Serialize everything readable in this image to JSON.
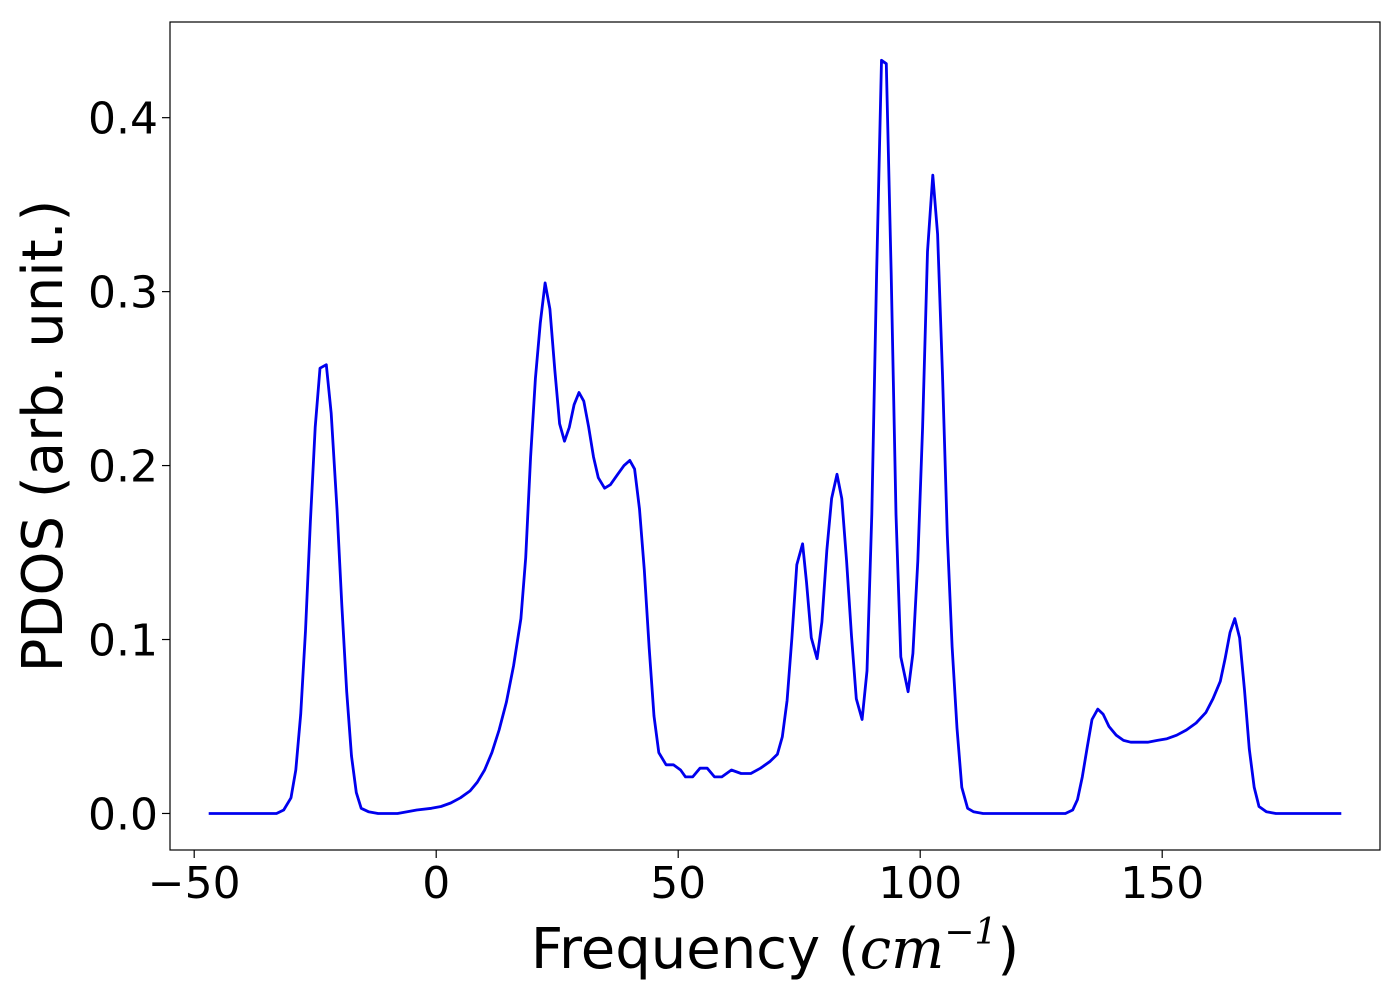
{
  "chart_data": {
    "type": "line",
    "title": "",
    "xlabel_prefix": "Frequency (",
    "xlabel_math": "cm",
    "xlabel_exponent": "−1",
    "xlabel_suffix": ")",
    "ylabel": "PDOS (arb. unit.)",
    "xlim": [
      -55,
      195
    ],
    "ylim": [
      -0.021,
      0.455
    ],
    "grid": false,
    "legend": "none",
    "x_ticks": [
      {
        "value": -50,
        "label": "−50"
      },
      {
        "value": 0,
        "label": "0"
      },
      {
        "value": 50,
        "label": "50"
      },
      {
        "value": 100,
        "label": "100"
      },
      {
        "value": 150,
        "label": "150"
      }
    ],
    "y_ticks": [
      {
        "value": 0.0,
        "label": "0.0"
      },
      {
        "value": 0.1,
        "label": "0.1"
      },
      {
        "value": 0.2,
        "label": "0.2"
      },
      {
        "value": 0.3,
        "label": "0.3"
      },
      {
        "value": 0.4,
        "label": "0.4"
      }
    ],
    "series": [
      {
        "color": "#0000ee",
        "points": [
          [
            -47.0,
            0.0
          ],
          [
            -33.0,
            0.0
          ],
          [
            -31.5,
            0.002
          ],
          [
            -30.0,
            0.009
          ],
          [
            -29.0,
            0.025
          ],
          [
            -28.0,
            0.057
          ],
          [
            -27.0,
            0.105
          ],
          [
            -26.0,
            0.168
          ],
          [
            -25.0,
            0.222
          ],
          [
            -24.0,
            0.256
          ],
          [
            -22.7,
            0.258
          ],
          [
            -21.7,
            0.23
          ],
          [
            -20.5,
            0.175
          ],
          [
            -19.5,
            0.12
          ],
          [
            -18.5,
            0.07
          ],
          [
            -17.5,
            0.033
          ],
          [
            -16.5,
            0.012
          ],
          [
            -15.5,
            0.003
          ],
          [
            -14.0,
            0.001
          ],
          [
            -12.0,
            0.0
          ],
          [
            -8.0,
            0.0
          ],
          [
            -6.0,
            0.001
          ],
          [
            -4.0,
            0.002
          ],
          [
            -1.0,
            0.003
          ],
          [
            1.0,
            0.004
          ],
          [
            3.0,
            0.006
          ],
          [
            5.0,
            0.009
          ],
          [
            7.0,
            0.013
          ],
          [
            8.5,
            0.018
          ],
          [
            10.0,
            0.025
          ],
          [
            11.5,
            0.035
          ],
          [
            13.0,
            0.048
          ],
          [
            14.5,
            0.064
          ],
          [
            16.0,
            0.085
          ],
          [
            17.5,
            0.112
          ],
          [
            18.5,
            0.147
          ],
          [
            19.5,
            0.205
          ],
          [
            20.5,
            0.25
          ],
          [
            21.5,
            0.282
          ],
          [
            22.5,
            0.305
          ],
          [
            23.5,
            0.29
          ],
          [
            24.5,
            0.255
          ],
          [
            25.5,
            0.224
          ],
          [
            26.5,
            0.214
          ],
          [
            27.5,
            0.222
          ],
          [
            28.5,
            0.235
          ],
          [
            29.5,
            0.242
          ],
          [
            30.5,
            0.237
          ],
          [
            31.5,
            0.222
          ],
          [
            32.5,
            0.205
          ],
          [
            33.5,
            0.193
          ],
          [
            34.8,
            0.187
          ],
          [
            36.0,
            0.189
          ],
          [
            37.5,
            0.195
          ],
          [
            38.8,
            0.2
          ],
          [
            40.0,
            0.203
          ],
          [
            41.0,
            0.198
          ],
          [
            42.0,
            0.175
          ],
          [
            43.0,
            0.14
          ],
          [
            44.0,
            0.095
          ],
          [
            45.0,
            0.056
          ],
          [
            46.0,
            0.035
          ],
          [
            47.5,
            0.028
          ],
          [
            49.0,
            0.028
          ],
          [
            50.5,
            0.025
          ],
          [
            51.5,
            0.021
          ],
          [
            53.0,
            0.021
          ],
          [
            54.5,
            0.026
          ],
          [
            56.0,
            0.026
          ],
          [
            57.5,
            0.021
          ],
          [
            59.0,
            0.021
          ],
          [
            61.0,
            0.025
          ],
          [
            63.0,
            0.023
          ],
          [
            65.0,
            0.023
          ],
          [
            67.0,
            0.026
          ],
          [
            69.0,
            0.03
          ],
          [
            70.5,
            0.034
          ],
          [
            71.5,
            0.044
          ],
          [
            72.5,
            0.065
          ],
          [
            73.5,
            0.101
          ],
          [
            74.5,
            0.143
          ],
          [
            75.7,
            0.155
          ],
          [
            76.5,
            0.133
          ],
          [
            77.5,
            0.101
          ],
          [
            78.7,
            0.089
          ],
          [
            79.7,
            0.11
          ],
          [
            80.7,
            0.151
          ],
          [
            81.7,
            0.181
          ],
          [
            82.8,
            0.195
          ],
          [
            83.8,
            0.181
          ],
          [
            84.8,
            0.145
          ],
          [
            85.8,
            0.102
          ],
          [
            86.8,
            0.066
          ],
          [
            88.0,
            0.054
          ],
          [
            89.0,
            0.082
          ],
          [
            90.0,
            0.172
          ],
          [
            91.0,
            0.31
          ],
          [
            92.0,
            0.433
          ],
          [
            93.0,
            0.431
          ],
          [
            94.0,
            0.31
          ],
          [
            95.0,
            0.172
          ],
          [
            96.0,
            0.09
          ],
          [
            97.5,
            0.07
          ],
          [
            98.5,
            0.092
          ],
          [
            99.5,
            0.145
          ],
          [
            100.5,
            0.222
          ],
          [
            101.5,
            0.323
          ],
          [
            102.6,
            0.367
          ],
          [
            103.6,
            0.333
          ],
          [
            104.6,
            0.252
          ],
          [
            105.6,
            0.16
          ],
          [
            106.6,
            0.096
          ],
          [
            107.6,
            0.049
          ],
          [
            108.6,
            0.015
          ],
          [
            109.8,
            0.003
          ],
          [
            111.0,
            0.001
          ],
          [
            113.0,
            0.0
          ],
          [
            130.0,
            0.0
          ],
          [
            131.5,
            0.002
          ],
          [
            132.5,
            0.008
          ],
          [
            133.5,
            0.021
          ],
          [
            134.5,
            0.038
          ],
          [
            135.5,
            0.054
          ],
          [
            136.7,
            0.06
          ],
          [
            137.8,
            0.057
          ],
          [
            139.0,
            0.05
          ],
          [
            140.5,
            0.045
          ],
          [
            142.0,
            0.042
          ],
          [
            143.5,
            0.041
          ],
          [
            145.0,
            0.041
          ],
          [
            147.0,
            0.041
          ],
          [
            149.0,
            0.042
          ],
          [
            151.0,
            0.043
          ],
          [
            153.0,
            0.045
          ],
          [
            155.0,
            0.048
          ],
          [
            157.0,
            0.052
          ],
          [
            159.0,
            0.058
          ],
          [
            160.5,
            0.066
          ],
          [
            162.0,
            0.076
          ],
          [
            163.0,
            0.089
          ],
          [
            164.0,
            0.104
          ],
          [
            165.0,
            0.112
          ],
          [
            166.0,
            0.101
          ],
          [
            167.0,
            0.071
          ],
          [
            168.0,
            0.037
          ],
          [
            169.0,
            0.015
          ],
          [
            170.0,
            0.004
          ],
          [
            171.5,
            0.001
          ],
          [
            173.5,
            0.0
          ],
          [
            187.0,
            0.0
          ]
        ]
      }
    ]
  }
}
